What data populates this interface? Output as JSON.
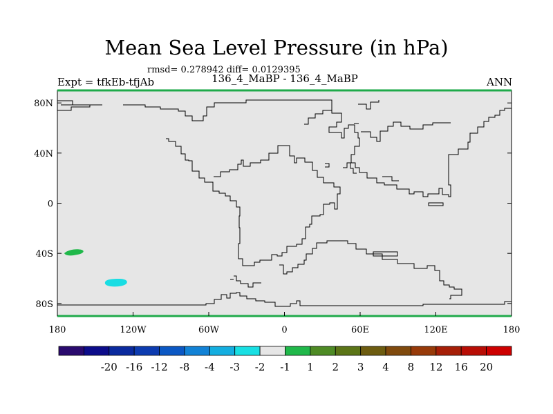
{
  "title": "Mean Sea Level Pressure (in hPa)",
  "stats_line": "rmsd= 0.278942 diff= 0.0129395",
  "left_label": "Expt = tfkEb-tfjAb",
  "center_label": "136_4_MaBP - 136_4_MaBP",
  "right_label": "ANN",
  "map": {
    "projection": "cylindrical-equidistant",
    "lon_range": [
      -180,
      180
    ],
    "lat_range": [
      -90,
      90
    ],
    "background_color": "#e6e6e6",
    "coastline_color": "#000000",
    "border_color": "#1faa4a",
    "lat_ticks": [
      {
        "value": 80,
        "label": "80N"
      },
      {
        "value": 40,
        "label": "40N"
      },
      {
        "value": 0,
        "label": "0"
      },
      {
        "value": -40,
        "label": "40S"
      },
      {
        "value": -80,
        "label": "80S"
      }
    ],
    "lon_ticks": [
      {
        "value": -180,
        "label": "180"
      },
      {
        "value": -120,
        "label": "120W"
      },
      {
        "value": -60,
        "label": "60W"
      },
      {
        "value": 0,
        "label": "0"
      },
      {
        "value": 60,
        "label": "60E"
      },
      {
        "value": 120,
        "label": "120E"
      },
      {
        "value": 180,
        "label": "180"
      }
    ],
    "anomaly_patches": [
      {
        "name": "positive-anomaly-south-pacific",
        "center_lon": -163,
        "center_lat": -39,
        "color": "#20b84a"
      },
      {
        "name": "negative-anomaly-south-pacific",
        "center_lon": -139,
        "center_lat": -63,
        "color": "#19dde3"
      }
    ]
  },
  "colorbar": {
    "colors": [
      "#2a0a6e",
      "#0c0c8a",
      "#0a2a9e",
      "#0c3bb0",
      "#0b58c4",
      "#1282d6",
      "#14aee0",
      "#18dfe3",
      "#e6e6e6",
      "#20b84a",
      "#4e8b25",
      "#5b7517",
      "#6d5c10",
      "#804a0d",
      "#973a09",
      "#a61f07",
      "#b80d05",
      "#cd0000"
    ],
    "labels": [
      "-20",
      "-16",
      "-12",
      "-8",
      "-4",
      "-3",
      "-2",
      "-1",
      "1",
      "2",
      "3",
      "4",
      "8",
      "12",
      "16",
      "20"
    ]
  }
}
